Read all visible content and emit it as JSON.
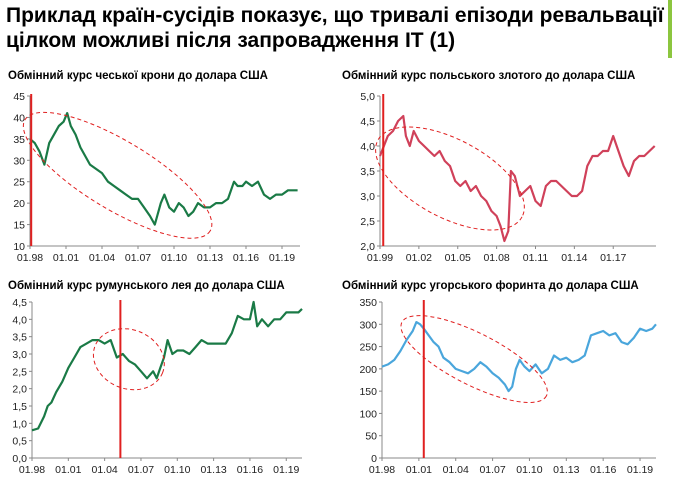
{
  "page": {
    "title_line1": "Приклад країн-сусідів показує, що тривалі епізоди ревальвації",
    "title_line2": "цілком можливі після запровадження ІТ (1)",
    "accent_color": "#8cc63f"
  },
  "chart_data": [
    {
      "type": "line",
      "title": "Обмінний курс чеської крони до долара США",
      "color": "#1a7a46",
      "ylim": [
        10,
        45
      ],
      "yticks": [
        "10",
        "15",
        "20",
        "25",
        "30",
        "35",
        "40",
        "45"
      ],
      "xlim": [
        1998,
        2020.5
      ],
      "xticks": [
        "01.98",
        "01.01",
        "01.04",
        "01.07",
        "01.10",
        "01.13",
        "01.16",
        "01.19"
      ],
      "x": [
        1998.0,
        1998.4,
        1998.8,
        1999.2,
        1999.6,
        2000.0,
        2000.4,
        2000.8,
        2001.1,
        2001.4,
        2001.8,
        2002.2,
        2002.6,
        2003.0,
        2003.5,
        2004.0,
        2004.5,
        2005.0,
        2005.5,
        2006.0,
        2006.5,
        2007.0,
        2007.5,
        2008.0,
        2008.4,
        2008.6,
        2008.9,
        2009.2,
        2009.6,
        2010.0,
        2010.4,
        2010.8,
        2011.2,
        2011.6,
        2012.0,
        2012.5,
        2013.0,
        2013.5,
        2014.0,
        2014.5,
        2015.0,
        2015.3,
        2015.7,
        2016.0,
        2016.5,
        2017.0,
        2017.5,
        2018.0,
        2018.5,
        2019.0,
        2019.5,
        2020.0,
        2020.3
      ],
      "values": [
        35,
        34,
        32,
        29,
        34,
        36,
        38,
        39,
        41,
        38,
        36,
        33,
        31,
        29,
        28,
        27,
        25,
        24,
        23,
        22,
        21,
        21,
        19,
        17,
        15,
        17,
        20,
        22,
        19,
        18,
        20,
        19,
        17,
        18,
        20,
        19,
        19,
        20,
        20,
        21,
        25,
        24,
        24,
        25,
        24,
        25,
        22,
        21,
        22,
        22,
        23,
        23,
        23
      ],
      "vline": 1998.1,
      "ellipse": {
        "cx": 2005.3,
        "cy": 26.5,
        "rx": 9.0,
        "ry": 8.0,
        "angle": 31
      }
    },
    {
      "type": "line",
      "title": "Обмінний курс польського злотого до долара США",
      "color": "#d0415a",
      "ylim": [
        2.0,
        5.0
      ],
      "yticks": [
        "2,0",
        "2,5",
        "3,0",
        "3,5",
        "4,0",
        "4,5",
        "5,0"
      ],
      "xlim": [
        1999,
        2020.3
      ],
      "xticks": [
        "01.99",
        "01.02",
        "01.05",
        "01.08",
        "01.11",
        "01.14",
        "01.17"
      ],
      "x": [
        1999.0,
        1999.3,
        1999.6,
        2000.0,
        2000.4,
        2000.8,
        2001.0,
        2001.3,
        2001.6,
        2002.0,
        2002.4,
        2002.8,
        2003.2,
        2003.6,
        2004.0,
        2004.4,
        2004.8,
        2005.2,
        2005.6,
        2006.0,
        2006.4,
        2006.8,
        2007.2,
        2007.6,
        2008.0,
        2008.3,
        2008.6,
        2008.9,
        2009.1,
        2009.4,
        2009.8,
        2010.2,
        2010.6,
        2011.0,
        2011.4,
        2011.8,
        2012.2,
        2012.6,
        2013.0,
        2013.4,
        2013.8,
        2014.2,
        2014.6,
        2015.0,
        2015.4,
        2015.8,
        2016.2,
        2016.6,
        2017.0,
        2017.4,
        2017.8,
        2018.2,
        2018.6,
        2019.0,
        2019.4,
        2019.8,
        2020.2
      ],
      "values": [
        3.8,
        4.0,
        4.2,
        4.3,
        4.5,
        4.6,
        4.2,
        4.0,
        4.3,
        4.1,
        4.0,
        3.9,
        3.8,
        3.9,
        3.7,
        3.6,
        3.3,
        3.2,
        3.3,
        3.1,
        3.2,
        3.0,
        2.9,
        2.7,
        2.6,
        2.4,
        2.1,
        2.3,
        3.5,
        3.4,
        3.0,
        3.1,
        3.2,
        2.9,
        2.8,
        3.2,
        3.3,
        3.3,
        3.2,
        3.1,
        3.0,
        3.0,
        3.1,
        3.6,
        3.8,
        3.8,
        3.9,
        3.9,
        4.2,
        3.9,
        3.6,
        3.4,
        3.7,
        3.8,
        3.8,
        3.9,
        4.0
      ],
      "vline": 1999.25,
      "ellipse": {
        "cx": 2004.4,
        "cy": 3.35,
        "rx": 6.3,
        "ry": 0.78,
        "angle": 28
      }
    },
    {
      "type": "line",
      "title": "Обмінний курс румунського лея до долара США",
      "color": "#1a7a46",
      "ylim": [
        0.0,
        4.5
      ],
      "yticks": [
        "0,0",
        "0,5",
        "1,0",
        "1,5",
        "2,0",
        "2,5",
        "3,0",
        "3,5",
        "4,0",
        "4,5"
      ],
      "xlim": [
        1998,
        2020.3
      ],
      "xticks": [
        "01.98",
        "01.01",
        "01.04",
        "01.07",
        "01.10",
        "01.13",
        "01.16",
        "01.19"
      ],
      "x": [
        1998.0,
        1998.5,
        1999.0,
        1999.3,
        1999.6,
        2000.0,
        2000.5,
        2001.0,
        2001.5,
        2002.0,
        2002.5,
        2003.0,
        2003.5,
        2004.0,
        2004.5,
        2005.0,
        2005.5,
        2006.0,
        2006.5,
        2007.0,
        2007.5,
        2008.0,
        2008.3,
        2008.6,
        2008.9,
        2009.2,
        2009.6,
        2010.0,
        2010.5,
        2011.0,
        2011.5,
        2012.0,
        2012.5,
        2013.0,
        2013.5,
        2014.0,
        2014.5,
        2015.0,
        2015.5,
        2016.0,
        2016.3,
        2016.6,
        2017.0,
        2017.5,
        2018.0,
        2018.5,
        2019.0,
        2019.5,
        2020.0,
        2020.3
      ],
      "values": [
        0.8,
        0.85,
        1.2,
        1.5,
        1.6,
        1.9,
        2.2,
        2.6,
        2.9,
        3.2,
        3.3,
        3.4,
        3.4,
        3.3,
        3.4,
        2.9,
        3.0,
        2.8,
        2.7,
        2.5,
        2.3,
        2.5,
        2.3,
        2.6,
        2.9,
        3.4,
        3.0,
        3.1,
        3.1,
        3.0,
        3.2,
        3.4,
        3.3,
        3.3,
        3.3,
        3.3,
        3.6,
        4.1,
        4.0,
        4.0,
        4.5,
        3.8,
        4.0,
        3.8,
        4.0,
        4.0,
        4.2,
        4.2,
        4.2,
        4.3
      ],
      "vline": 2005.3,
      "ellipse": {
        "cx": 2006.0,
        "cy": 2.85,
        "rx": 3.0,
        "ry": 0.85,
        "angle": 22
      }
    },
    {
      "type": "line",
      "title": "Обмінний курс угорського форинта до долара США",
      "color": "#4aa6dc",
      "ylim": [
        0,
        350
      ],
      "yticks": [
        "0",
        "50",
        "100",
        "150",
        "200",
        "250",
        "300",
        "350"
      ],
      "xlim": [
        1998,
        2020.3
      ],
      "xticks": [
        "01.98",
        "01.01",
        "01.04",
        "01.07",
        "01.10",
        "01.13",
        "01.16",
        "01.19"
      ],
      "x": [
        1998.0,
        1998.5,
        1999.0,
        1999.5,
        2000.0,
        2000.5,
        2000.8,
        2001.1,
        2001.4,
        2001.8,
        2002.2,
        2002.6,
        2003.0,
        2003.5,
        2004.0,
        2004.5,
        2005.0,
        2005.5,
        2006.0,
        2006.5,
        2007.0,
        2007.5,
        2008.0,
        2008.3,
        2008.6,
        2008.9,
        2009.2,
        2009.6,
        2010.0,
        2010.5,
        2011.0,
        2011.5,
        2012.0,
        2012.5,
        2013.0,
        2013.5,
        2014.0,
        2014.5,
        2015.0,
        2015.5,
        2016.0,
        2016.5,
        2017.0,
        2017.5,
        2018.0,
        2018.5,
        2019.0,
        2019.5,
        2020.0,
        2020.3
      ],
      "values": [
        205,
        210,
        220,
        240,
        265,
        285,
        305,
        300,
        290,
        275,
        260,
        250,
        225,
        215,
        200,
        195,
        190,
        200,
        215,
        205,
        190,
        180,
        165,
        150,
        160,
        200,
        220,
        205,
        195,
        210,
        190,
        200,
        230,
        220,
        225,
        215,
        220,
        230,
        275,
        280,
        285,
        275,
        280,
        260,
        255,
        270,
        290,
        285,
        290,
        300
      ],
      "vline": 2001.4,
      "ellipse": {
        "cx": 2005.5,
        "cy": 222,
        "rx": 6.6,
        "ry": 58,
        "angle": 27
      }
    }
  ]
}
